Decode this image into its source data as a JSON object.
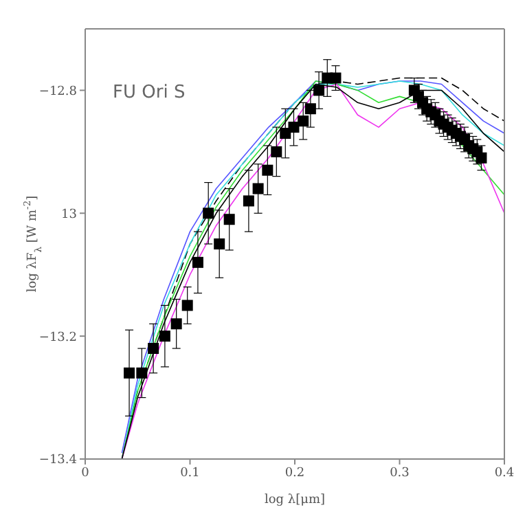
{
  "chart_data": {
    "type": "line",
    "annotations": [
      "FU Ori S"
    ],
    "xlabel": "log λ[μm]",
    "ylabel": "log λF$_{λ}$ [W m$^{-2}$]",
    "xlim": [
      0,
      0.4
    ],
    "xticks": [
      0,
      0.1,
      0.2,
      0.3,
      0.4
    ],
    "ylim": [
      -13.4,
      -12.7
    ],
    "yticks": [
      {
        "value": -13.4,
        "label": "−13.4"
      },
      {
        "value": -13.2,
        "label": "−13.2"
      },
      {
        "value": -13,
        "label": "13"
      },
      {
        "value": -12.8,
        "label": "−12.8"
      }
    ],
    "grid": false,
    "legend": false,
    "series": [
      {
        "color": "#000000",
        "line_style": "dashed",
        "marker": "none",
        "x": [
          0.035,
          0.05,
          0.075,
          0.1,
          0.125,
          0.15,
          0.175,
          0.2,
          0.22,
          0.24,
          0.26,
          0.28,
          0.3,
          0.32,
          0.34,
          0.36,
          0.38,
          0.4
        ],
        "values": [
          -13.4,
          -13.29,
          -13.17,
          -13.05,
          -12.98,
          -12.92,
          -12.87,
          -12.82,
          -12.79,
          -12.785,
          -12.79,
          -12.785,
          -12.78,
          -12.78,
          -12.78,
          -12.8,
          -12.83,
          -12.85
        ]
      },
      {
        "color": "#5555ff",
        "line_style": "solid",
        "marker": "none",
        "x": [
          0.035,
          0.05,
          0.075,
          0.1,
          0.125,
          0.15,
          0.175,
          0.2,
          0.22,
          0.24,
          0.26,
          0.28,
          0.3,
          0.32,
          0.34,
          0.36,
          0.38,
          0.4
        ],
        "values": [
          -13.39,
          -13.27,
          -13.14,
          -13.03,
          -12.96,
          -12.91,
          -12.86,
          -12.82,
          -12.785,
          -12.79,
          -12.8,
          -12.79,
          -12.785,
          -12.785,
          -12.79,
          -12.82,
          -12.85,
          -12.87
        ]
      },
      {
        "color": "#33dddd",
        "line_style": "solid",
        "marker": "none",
        "x": [
          0.035,
          0.05,
          0.075,
          0.1,
          0.125,
          0.15,
          0.175,
          0.2,
          0.22,
          0.24,
          0.26,
          0.28,
          0.3,
          0.32,
          0.34,
          0.36,
          0.38,
          0.4
        ],
        "values": [
          -13.4,
          -13.28,
          -13.15,
          -13.05,
          -12.97,
          -12.92,
          -12.87,
          -12.82,
          -12.79,
          -12.79,
          -12.795,
          -12.79,
          -12.785,
          -12.79,
          -12.8,
          -12.84,
          -12.87,
          -12.89
        ]
      },
      {
        "color": "#33dd33",
        "line_style": "solid",
        "marker": "none",
        "x": [
          0.035,
          0.05,
          0.075,
          0.1,
          0.125,
          0.15,
          0.175,
          0.2,
          0.22,
          0.24,
          0.26,
          0.28,
          0.3,
          0.32,
          0.34,
          0.36,
          0.38,
          0.4
        ],
        "values": [
          -13.4,
          -13.29,
          -13.17,
          -13.07,
          -12.99,
          -12.93,
          -12.88,
          -12.83,
          -12.785,
          -12.79,
          -12.8,
          -12.82,
          -12.81,
          -12.82,
          -12.85,
          -12.89,
          -12.93,
          -12.97
        ]
      },
      {
        "color": "#ee33ee",
        "line_style": "solid",
        "marker": "none",
        "x": [
          0.035,
          0.05,
          0.075,
          0.1,
          0.125,
          0.15,
          0.175,
          0.2,
          0.22,
          0.24,
          0.26,
          0.28,
          0.3,
          0.32,
          0.34,
          0.36,
          0.38,
          0.4
        ],
        "values": [
          -13.4,
          -13.31,
          -13.2,
          -13.1,
          -13.02,
          -12.96,
          -12.91,
          -12.85,
          -12.8,
          -12.79,
          -12.84,
          -12.86,
          -12.83,
          -12.82,
          -12.83,
          -12.86,
          -12.92,
          -13.0
        ]
      },
      {
        "color": "#000000",
        "line_style": "solid",
        "marker": "none",
        "x": [
          0.035,
          0.05,
          0.075,
          0.1,
          0.125,
          0.15,
          0.175,
          0.2,
          0.22,
          0.24,
          0.26,
          0.28,
          0.3,
          0.32,
          0.34,
          0.36,
          0.38,
          0.4
        ],
        "values": [
          -13.4,
          -13.3,
          -13.18,
          -13.08,
          -13.0,
          -12.94,
          -12.89,
          -12.83,
          -12.79,
          -12.795,
          -12.82,
          -12.83,
          -12.82,
          -12.8,
          -12.8,
          -12.83,
          -12.87,
          -12.9
        ]
      },
      {
        "type": "scatter",
        "color": "#000000",
        "marker": "square",
        "x": [
          0.042,
          0.054,
          0.065,
          0.076,
          0.087,
          0.0975,
          0.1075,
          0.1175,
          0.128,
          0.1375,
          0.156,
          0.165,
          0.174,
          0.1825,
          0.191,
          0.199,
          0.208,
          0.215,
          0.223,
          0.231,
          0.239,
          0.314,
          0.318,
          0.322,
          0.326,
          0.33,
          0.334,
          0.338,
          0.342,
          0.346,
          0.35,
          0.354,
          0.358,
          0.362,
          0.366,
          0.37,
          0.374,
          0.378
        ],
        "values": [
          -13.26,
          -13.26,
          -13.22,
          -13.2,
          -13.18,
          -13.15,
          -13.08,
          -13.0,
          -13.05,
          -13.01,
          -12.98,
          -12.96,
          -12.93,
          -12.9,
          -12.87,
          -12.86,
          -12.85,
          -12.83,
          -12.8,
          -12.78,
          -12.78,
          -12.8,
          -12.81,
          -12.82,
          -12.83,
          -12.835,
          -12.84,
          -12.85,
          -12.855,
          -12.86,
          -12.865,
          -12.87,
          -12.875,
          -12.88,
          -12.89,
          -12.895,
          -12.9,
          -12.91
        ],
        "errors": [
          0.07,
          0.04,
          0.04,
          0.05,
          0.04,
          0.03,
          0.05,
          0.05,
          0.055,
          0.05,
          0.05,
          0.04,
          0.04,
          0.04,
          0.04,
          0.03,
          0.03,
          0.03,
          0.03,
          0.03,
          0.02,
          0.02,
          0.02,
          0.02,
          0.02,
          0.02,
          0.02,
          0.02,
          0.02,
          0.02,
          0.02,
          0.02,
          0.02,
          0.02,
          0.02,
          0.02,
          0.02,
          0.02
        ]
      }
    ]
  }
}
